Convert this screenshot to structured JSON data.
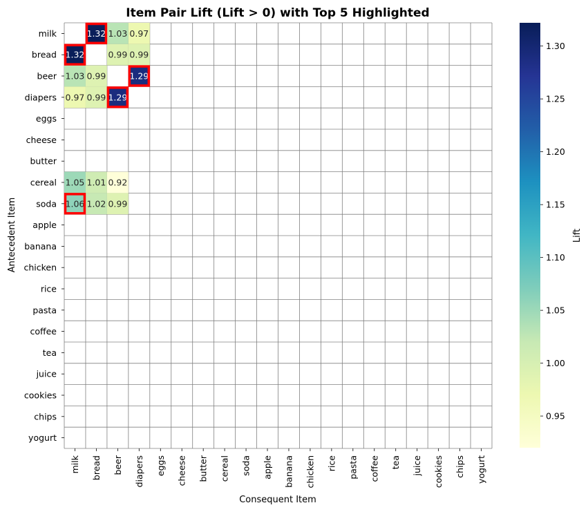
{
  "chart_data": {
    "type": "heatmap",
    "title": "Item Pair Lift (Lift > 0) with Top 5 Highlighted",
    "xlabel": "Consequent Item",
    "ylabel": "Antecedent Item",
    "rows": [
      "milk",
      "bread",
      "beer",
      "diapers",
      "eggs",
      "cheese",
      "butter",
      "cereal",
      "soda",
      "apple",
      "banana",
      "chicken",
      "rice",
      "pasta",
      "coffee",
      "tea",
      "juice",
      "cookies",
      "chips",
      "yogurt"
    ],
    "columns": [
      "milk",
      "bread",
      "beer",
      "diapers",
      "eggs",
      "cheese",
      "butter",
      "cereal",
      "soda",
      "apple",
      "banana",
      "chicken",
      "rice",
      "pasta",
      "coffee",
      "tea",
      "juice",
      "cookies",
      "chips",
      "yogurt"
    ],
    "cells": [
      {
        "row": "milk",
        "col": "bread",
        "value": 1.32
      },
      {
        "row": "milk",
        "col": "beer",
        "value": 1.03
      },
      {
        "row": "milk",
        "col": "diapers",
        "value": 0.97
      },
      {
        "row": "bread",
        "col": "milk",
        "value": 1.32
      },
      {
        "row": "bread",
        "col": "beer",
        "value": 0.99
      },
      {
        "row": "bread",
        "col": "diapers",
        "value": 0.99
      },
      {
        "row": "beer",
        "col": "milk",
        "value": 1.03
      },
      {
        "row": "beer",
        "col": "bread",
        "value": 0.99
      },
      {
        "row": "beer",
        "col": "diapers",
        "value": 1.29
      },
      {
        "row": "diapers",
        "col": "milk",
        "value": 0.97
      },
      {
        "row": "diapers",
        "col": "bread",
        "value": 0.99
      },
      {
        "row": "diapers",
        "col": "beer",
        "value": 1.29
      },
      {
        "row": "cereal",
        "col": "milk",
        "value": 1.05
      },
      {
        "row": "cereal",
        "col": "bread",
        "value": 1.01
      },
      {
        "row": "cereal",
        "col": "beer",
        "value": 0.92
      },
      {
        "row": "soda",
        "col": "milk",
        "value": 1.06
      },
      {
        "row": "soda",
        "col": "bread",
        "value": 1.02
      },
      {
        "row": "soda",
        "col": "beer",
        "value": 0.99
      }
    ],
    "highlighted": [
      {
        "row": "milk",
        "col": "bread"
      },
      {
        "row": "bread",
        "col": "milk"
      },
      {
        "row": "beer",
        "col": "diapers"
      },
      {
        "row": "diapers",
        "col": "beer"
      },
      {
        "row": "soda",
        "col": "milk"
      }
    ],
    "highlight_color": "#ff0000",
    "grid_color": "#808080",
    "colormap": "YlGnBu",
    "colorbar": {
      "label": "Lift",
      "range": [
        0.92,
        1.322
      ],
      "ticks": [
        0.95,
        1.0,
        1.05,
        1.1,
        1.15,
        1.2,
        1.25,
        1.3
      ],
      "tick_labels": [
        "0.95",
        "1.00",
        "1.05",
        "1.10",
        "1.15",
        "1.20",
        "1.25",
        "1.30"
      ]
    }
  }
}
